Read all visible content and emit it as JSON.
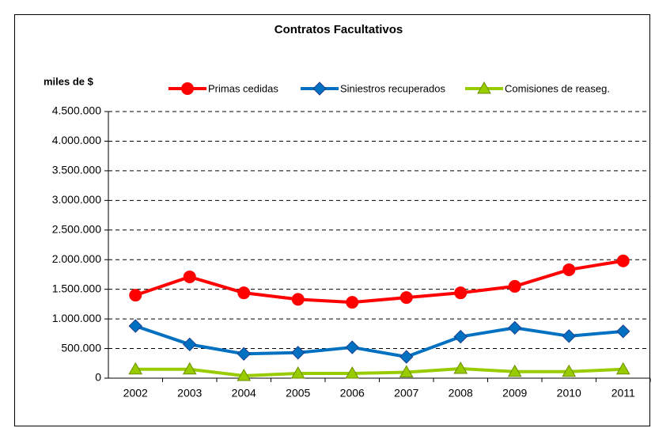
{
  "chart_data": {
    "type": "line",
    "title": "Contratos Facultativos",
    "y_label": "miles de $",
    "categories": [
      "2002",
      "2003",
      "2004",
      "2005",
      "2006",
      "2007",
      "2008",
      "2009",
      "2010",
      "2011"
    ],
    "series": [
      {
        "name": "Primas cedidas",
        "color": "#ff0000",
        "marker": "circle",
        "values": [
          1400000,
          1710000,
          1440000,
          1330000,
          1280000,
          1360000,
          1440000,
          1550000,
          1830000,
          1980000
        ]
      },
      {
        "name": "Siniestros recuperados",
        "color": "#0070c0",
        "marker": "diamond",
        "values": [
          880000,
          570000,
          410000,
          430000,
          520000,
          360000,
          700000,
          850000,
          710000,
          790000
        ]
      },
      {
        "name": "Comisiones de reaseg.",
        "color": "#99cc00",
        "marker": "triangle",
        "values": [
          150000,
          150000,
          40000,
          80000,
          80000,
          100000,
          160000,
          110000,
          110000,
          150000
        ]
      }
    ],
    "ylim": [
      0,
      4500000
    ],
    "yticks": [
      0,
      {
        "value": 500000,
        "label": "500.000"
      },
      {
        "value": 1000000,
        "label": "1.000.000"
      },
      {
        "value": 1500000,
        "label": "1.500.000"
      },
      {
        "value": 2000000,
        "label": "2.000.000"
      },
      {
        "value": 2500000,
        "label": "2.500.000"
      },
      {
        "value": 3000000,
        "label": "3.000.000"
      },
      {
        "value": 3500000,
        "label": "3.500.000"
      },
      {
        "value": 4000000,
        "label": "4.000.000"
      },
      {
        "value": 4500000,
        "label": "4.500.000"
      }
    ],
    "grid": true,
    "legend": "top"
  }
}
